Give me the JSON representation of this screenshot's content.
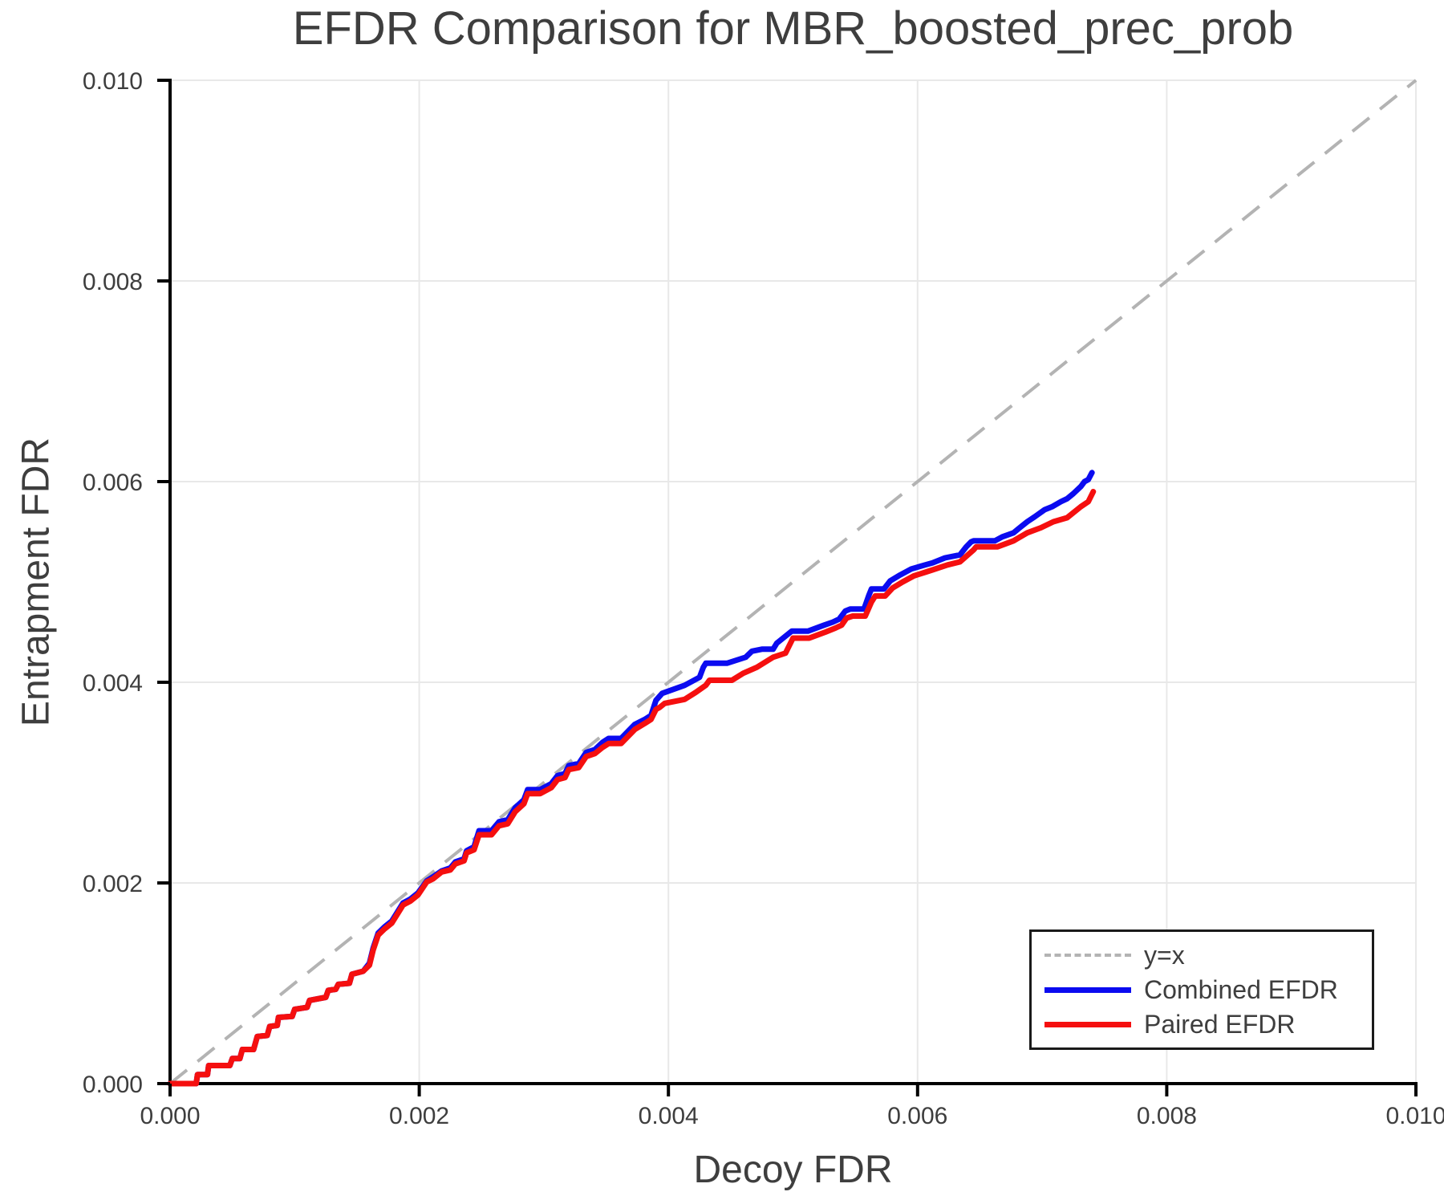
{
  "chart_data": {
    "type": "line",
    "title": "EFDR Comparison for MBR_boosted_prec_prob",
    "xlabel": "Decoy FDR",
    "ylabel": "Entrapment FDR",
    "xlim": [
      0,
      0.01
    ],
    "ylim": [
      0,
      0.01
    ],
    "grid": true,
    "x_ticks": {
      "values": [
        0,
        0.002,
        0.004,
        0.006,
        0.008,
        0.01
      ],
      "labels": [
        "0.000",
        "0.002",
        "0.004",
        "0.006",
        "0.008",
        "0.010"
      ]
    },
    "y_ticks": {
      "values": [
        0,
        0.002,
        0.004,
        0.006,
        0.008,
        0.01
      ],
      "labels": [
        "0.000",
        "0.002",
        "0.004",
        "0.006",
        "0.008",
        "0.010"
      ]
    },
    "colors": {
      "grid": "#e8e8e8",
      "spine": "#000000",
      "text": "#3e3e3e",
      "reference": "#b3b3b3",
      "combined": "#0b0bf0",
      "paired": "#f50f0f"
    },
    "reference_line": {
      "label": "y=x",
      "style": "dashed",
      "color": "#b3b3b3",
      "from": [
        0,
        0
      ],
      "to": [
        0.01,
        0.01
      ]
    },
    "legend": {
      "position": "lower right",
      "entries": [
        {
          "label": "y=x",
          "style": "dashed",
          "color": "#b3b3b3"
        },
        {
          "label": "Combined EFDR",
          "style": "solid",
          "color": "#0b0bf0"
        },
        {
          "label": "Paired EFDR",
          "style": "solid",
          "color": "#f50f0f"
        }
      ]
    },
    "series": [
      {
        "name": "Combined EFDR",
        "color": "#0b0bf0",
        "points": [
          [
            0.0,
            0.0
          ],
          [
            0.00021,
            0.0
          ],
          [
            0.00022,
            9e-05
          ],
          [
            0.0003,
            9e-05
          ],
          [
            0.00031,
            0.00018
          ],
          [
            0.00048,
            0.00018
          ],
          [
            0.0005,
            0.00025
          ],
          [
            0.00056,
            0.00025
          ],
          [
            0.00058,
            0.00034
          ],
          [
            0.00067,
            0.00034
          ],
          [
            0.0007,
            0.00047
          ],
          [
            0.00078,
            0.00048
          ],
          [
            0.0008,
            0.00057
          ],
          [
            0.00086,
            0.00058
          ],
          [
            0.00087,
            0.00066
          ],
          [
            0.00098,
            0.00067
          ],
          [
            0.001,
            0.00074
          ],
          [
            0.0011,
            0.00076
          ],
          [
            0.00112,
            0.00083
          ],
          [
            0.00125,
            0.00086
          ],
          [
            0.00127,
            0.00093
          ],
          [
            0.00133,
            0.00094
          ],
          [
            0.00135,
            0.00099
          ],
          [
            0.00144,
            0.001
          ],
          [
            0.00146,
            0.00109
          ],
          [
            0.00155,
            0.00112
          ],
          [
            0.0016,
            0.0012
          ],
          [
            0.00163,
            0.00135
          ],
          [
            0.00167,
            0.0015
          ],
          [
            0.00172,
            0.00156
          ],
          [
            0.00178,
            0.00162
          ],
          [
            0.00183,
            0.00172
          ],
          [
            0.00187,
            0.0018
          ],
          [
            0.00193,
            0.00184
          ],
          [
            0.00199,
            0.0019
          ],
          [
            0.00206,
            0.00202
          ],
          [
            0.00211,
            0.00206
          ],
          [
            0.00218,
            0.00212
          ],
          [
            0.00225,
            0.00215
          ],
          [
            0.00229,
            0.00221
          ],
          [
            0.00236,
            0.00224
          ],
          [
            0.00238,
            0.00232
          ],
          [
            0.00244,
            0.00236
          ],
          [
            0.00248,
            0.00252
          ],
          [
            0.00258,
            0.00252
          ],
          [
            0.00264,
            0.00261
          ],
          [
            0.00271,
            0.00263
          ],
          [
            0.00277,
            0.00275
          ],
          [
            0.00284,
            0.00283
          ],
          [
            0.00287,
            0.00293
          ],
          [
            0.00297,
            0.00293
          ],
          [
            0.00306,
            0.00299
          ],
          [
            0.00311,
            0.00307
          ],
          [
            0.00317,
            0.00309
          ],
          [
            0.0032,
            0.00317
          ],
          [
            0.00328,
            0.00319
          ],
          [
            0.00334,
            0.0033
          ],
          [
            0.00341,
            0.00333
          ],
          [
            0.00347,
            0.0034
          ],
          [
            0.00352,
            0.00344
          ],
          [
            0.00362,
            0.00344
          ],
          [
            0.00373,
            0.00358
          ],
          [
            0.00381,
            0.00363
          ],
          [
            0.00386,
            0.00367
          ],
          [
            0.0039,
            0.00382
          ],
          [
            0.00395,
            0.00389
          ],
          [
            0.00404,
            0.00393
          ],
          [
            0.00413,
            0.00397
          ],
          [
            0.00425,
            0.00405
          ],
          [
            0.00428,
            0.00415
          ],
          [
            0.0043,
            0.00419
          ],
          [
            0.00447,
            0.00419
          ],
          [
            0.00462,
            0.00425
          ],
          [
            0.00467,
            0.00431
          ],
          [
            0.00475,
            0.00433
          ],
          [
            0.00484,
            0.00433
          ],
          [
            0.00487,
            0.00439
          ],
          [
            0.00499,
            0.00451
          ],
          [
            0.00512,
            0.00451
          ],
          [
            0.00525,
            0.00457
          ],
          [
            0.00532,
            0.0046
          ],
          [
            0.00537,
            0.00463
          ],
          [
            0.00542,
            0.00471
          ],
          [
            0.00546,
            0.00473
          ],
          [
            0.00557,
            0.00473
          ],
          [
            0.00561,
            0.00487
          ],
          [
            0.00563,
            0.00493
          ],
          [
            0.00573,
            0.00493
          ],
          [
            0.00578,
            0.00501
          ],
          [
            0.00586,
            0.00507
          ],
          [
            0.00595,
            0.00513
          ],
          [
            0.00606,
            0.00517
          ],
          [
            0.00612,
            0.00519
          ],
          [
            0.00622,
            0.00524
          ],
          [
            0.00634,
            0.00527
          ],
          [
            0.00639,
            0.00535
          ],
          [
            0.00643,
            0.0054
          ],
          [
            0.00645,
            0.00541
          ],
          [
            0.00662,
            0.00541
          ],
          [
            0.00668,
            0.00545
          ],
          [
            0.00677,
            0.00549
          ],
          [
            0.00681,
            0.00553
          ],
          [
            0.00688,
            0.0056
          ],
          [
            0.00694,
            0.00565
          ],
          [
            0.00702,
            0.00572
          ],
          [
            0.00708,
            0.00575
          ],
          [
            0.00715,
            0.0058
          ],
          [
            0.0072,
            0.00583
          ],
          [
            0.00725,
            0.00588
          ],
          [
            0.00731,
            0.00595
          ],
          [
            0.00734,
            0.006
          ],
          [
            0.00737,
            0.00602
          ],
          [
            0.0074,
            0.00609
          ]
        ]
      },
      {
        "name": "Paired EFDR",
        "color": "#f50f0f",
        "points": [
          [
            0.0,
            0.0
          ],
          [
            0.00021,
            0.0
          ],
          [
            0.00022,
            9e-05
          ],
          [
            0.0003,
            9e-05
          ],
          [
            0.00031,
            0.00018
          ],
          [
            0.00048,
            0.00018
          ],
          [
            0.0005,
            0.00025
          ],
          [
            0.00056,
            0.00025
          ],
          [
            0.00058,
            0.00034
          ],
          [
            0.00067,
            0.00034
          ],
          [
            0.0007,
            0.00047
          ],
          [
            0.00078,
            0.00048
          ],
          [
            0.0008,
            0.00057
          ],
          [
            0.00086,
            0.00058
          ],
          [
            0.00087,
            0.00066
          ],
          [
            0.00098,
            0.00067
          ],
          [
            0.001,
            0.00074
          ],
          [
            0.0011,
            0.00076
          ],
          [
            0.00112,
            0.00083
          ],
          [
            0.00125,
            0.00086
          ],
          [
            0.00127,
            0.00093
          ],
          [
            0.00133,
            0.00094
          ],
          [
            0.00135,
            0.00099
          ],
          [
            0.00144,
            0.001
          ],
          [
            0.00146,
            0.00109
          ],
          [
            0.00155,
            0.00112
          ],
          [
            0.0016,
            0.00118
          ],
          [
            0.00163,
            0.00133
          ],
          [
            0.00167,
            0.00148
          ],
          [
            0.00172,
            0.00154
          ],
          [
            0.00178,
            0.0016
          ],
          [
            0.00183,
            0.0017
          ],
          [
            0.00187,
            0.00178
          ],
          [
            0.00193,
            0.00182
          ],
          [
            0.00199,
            0.00188
          ],
          [
            0.00206,
            0.00201
          ],
          [
            0.00211,
            0.00204
          ],
          [
            0.00218,
            0.00211
          ],
          [
            0.00225,
            0.00213
          ],
          [
            0.00229,
            0.00219
          ],
          [
            0.00236,
            0.00222
          ],
          [
            0.00238,
            0.0023
          ],
          [
            0.00244,
            0.00233
          ],
          [
            0.00248,
            0.00248
          ],
          [
            0.00258,
            0.00248
          ],
          [
            0.00264,
            0.00257
          ],
          [
            0.00271,
            0.00259
          ],
          [
            0.00277,
            0.00271
          ],
          [
            0.00284,
            0.00279
          ],
          [
            0.00287,
            0.00289
          ],
          [
            0.00297,
            0.00289
          ],
          [
            0.00306,
            0.00295
          ],
          [
            0.00311,
            0.00303
          ],
          [
            0.00317,
            0.00305
          ],
          [
            0.0032,
            0.00313
          ],
          [
            0.00328,
            0.00315
          ],
          [
            0.00334,
            0.00326
          ],
          [
            0.00341,
            0.00329
          ],
          [
            0.00347,
            0.00335
          ],
          [
            0.00352,
            0.00339
          ],
          [
            0.00362,
            0.00339
          ],
          [
            0.00373,
            0.00353
          ],
          [
            0.00381,
            0.00359
          ],
          [
            0.00386,
            0.00363
          ],
          [
            0.0039,
            0.00373
          ],
          [
            0.00393,
            0.00375
          ],
          [
            0.00397,
            0.00379
          ],
          [
            0.00413,
            0.00383
          ],
          [
            0.00422,
            0.0039
          ],
          [
            0.0043,
            0.00397
          ],
          [
            0.00433,
            0.00402
          ],
          [
            0.00451,
            0.00402
          ],
          [
            0.0046,
            0.00409
          ],
          [
            0.00471,
            0.00415
          ],
          [
            0.00484,
            0.00425
          ],
          [
            0.00494,
            0.00429
          ],
          [
            0.005,
            0.00444
          ],
          [
            0.00513,
            0.00444
          ],
          [
            0.00526,
            0.0045
          ],
          [
            0.00534,
            0.00454
          ],
          [
            0.00539,
            0.00457
          ],
          [
            0.00543,
            0.00464
          ],
          [
            0.00548,
            0.00466
          ],
          [
            0.00558,
            0.00466
          ],
          [
            0.00563,
            0.0048
          ],
          [
            0.00566,
            0.00486
          ],
          [
            0.00574,
            0.00486
          ],
          [
            0.0058,
            0.00494
          ],
          [
            0.00588,
            0.005
          ],
          [
            0.00597,
            0.00506
          ],
          [
            0.00607,
            0.0051
          ],
          [
            0.00612,
            0.00512
          ],
          [
            0.00624,
            0.00517
          ],
          [
            0.00634,
            0.0052
          ],
          [
            0.00645,
            0.00532
          ],
          [
            0.00647,
            0.00535
          ],
          [
            0.00664,
            0.00535
          ],
          [
            0.00677,
            0.00541
          ],
          [
            0.00688,
            0.00549
          ],
          [
            0.00699,
            0.00554
          ],
          [
            0.00709,
            0.0056
          ],
          [
            0.0072,
            0.00564
          ],
          [
            0.00731,
            0.00575
          ],
          [
            0.00737,
            0.0058
          ],
          [
            0.00741,
            0.0059
          ]
        ]
      }
    ]
  }
}
